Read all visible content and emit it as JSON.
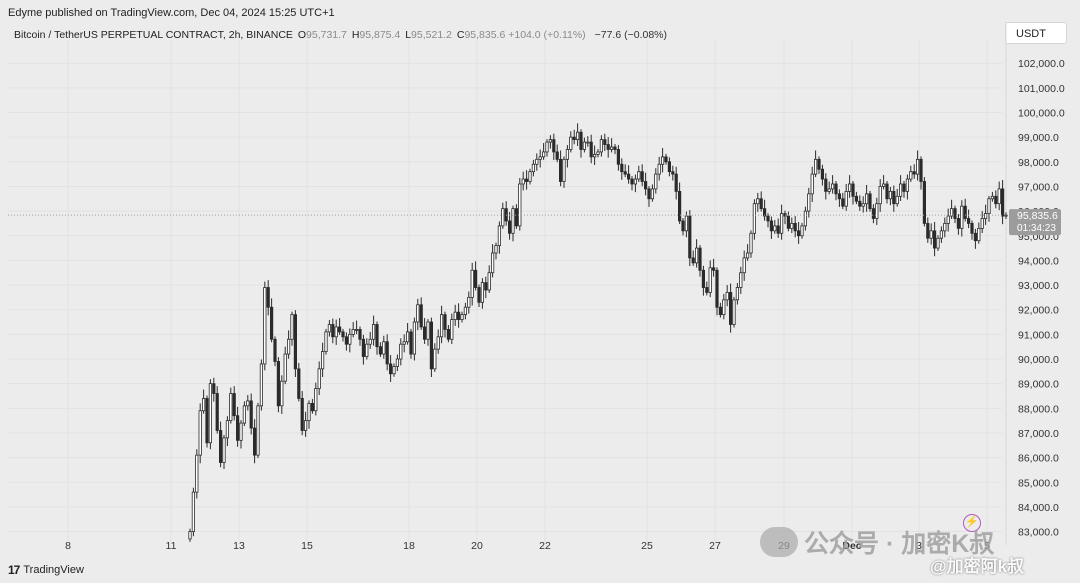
{
  "header": {
    "published": "Edyme published on TradingView.com, Dec 04, 2024 15:25 UTC+1",
    "symbol": "Bitcoin / TetherUS PERPETUAL CONTRACT, 2h, BINANCE",
    "o_label": "O",
    "o_value": "95,731.7",
    "h_label": "H",
    "h_value": "95,875.4",
    "l_label": "L",
    "l_value": "95,521.2",
    "c_label": "C",
    "c_value": "95,835.6",
    "change": "+104.0 (+0.11%)",
    "change2": "−77.6 (−0.08%)",
    "currency": "USDT"
  },
  "price_label": {
    "price": "95,835.6",
    "countdown": "01:34:23"
  },
  "footer": {
    "brand": "TradingView",
    "logo_icon": "tradingview-logo-icon"
  },
  "watermark": {
    "text": "公众号 · 加密K叔",
    "text2": "@加密阿k叔"
  },
  "colors": {
    "candle": "#2b2b2b",
    "wick": "#2b2b2b",
    "grid": "#e2e2e2",
    "background": "#ececec",
    "last_price_bg": "#9c9c9c"
  },
  "chart_data": {
    "type": "candlestick",
    "interval": "2h",
    "ylim": [
      82800,
      103000
    ],
    "y_ticks": [
      "102,000.0",
      "101,000.0",
      "100,000.0",
      "99,000.0",
      "98,000.0",
      "97,000.0",
      "96,000.0",
      "95,000.0",
      "94,000.0",
      "93,000.0",
      "92,000.0",
      "91,000.0",
      "90,000.0",
      "89,000.0",
      "88,000.0",
      "87,000.0",
      "86,000.0",
      "85,000.0",
      "84,000.0",
      "83,000.0"
    ],
    "y_tick_values": [
      102000,
      101000,
      100000,
      99000,
      98000,
      97000,
      96000,
      95000,
      94000,
      93000,
      92000,
      91000,
      90000,
      89000,
      88000,
      87000,
      86000,
      85000,
      84000,
      83000
    ],
    "x_ticks": [
      "8",
      "11",
      "13",
      "15",
      "18",
      "20",
      "22",
      "25",
      "27",
      "29",
      "Dec",
      "3",
      "5"
    ],
    "x_tick_bold": [
      false,
      false,
      false,
      false,
      false,
      false,
      false,
      false,
      false,
      false,
      true,
      false,
      false
    ],
    "last_price": 95835.6,
    "series": [
      {
        "name": "BTCUSDT.P",
        "closes": [
          83000,
          84600,
          86100,
          87900,
          88400,
          86600,
          89000,
          88600,
          87100,
          85800,
          86800,
          87500,
          88600,
          87700,
          86700,
          87400,
          88100,
          88300,
          87200,
          86100,
          88100,
          89800,
          92900,
          92100,
          90800,
          89900,
          88100,
          89100,
          90200,
          90800,
          91800,
          89600,
          88400,
          87100,
          87500,
          88200,
          87900,
          88800,
          89600,
          90300,
          91100,
          91400,
          90900,
          91300,
          91100,
          90900,
          90600,
          91000,
          91200,
          91200,
          90800,
          90100,
          90600,
          90800,
          91400,
          90500,
          90200,
          90700,
          89800,
          89400,
          89700,
          90000,
          90600,
          90700,
          91100,
          90200,
          91500,
          92200,
          91300,
          90800,
          91500,
          89600,
          90400,
          90900,
          91800,
          91200,
          90800,
          91600,
          91900,
          91600,
          91800,
          92100,
          92500,
          93600,
          92900,
          92300,
          93100,
          92800,
          93500,
          94300,
          94600,
          95400,
          96100,
          95600,
          95100,
          96100,
          95400,
          97100,
          97300,
          97200,
          97600,
          97900,
          98100,
          98200,
          98400,
          98800,
          98900,
          98400,
          98100,
          97200,
          98100,
          98500,
          99000,
          98900,
          99200,
          98500,
          98800,
          98800,
          98200,
          98300,
          98400,
          98900,
          98700,
          98500,
          98600,
          98500,
          97900,
          97600,
          97500,
          97300,
          97100,
          97300,
          97600,
          97200,
          96900,
          96500,
          96900,
          97500,
          97900,
          98200,
          98000,
          97600,
          97500,
          96800,
          95600,
          95200,
          95800,
          94100,
          93900,
          94500,
          93600,
          92900,
          92700,
          93700,
          93600,
          92100,
          91800,
          92400,
          92700,
          91400,
          92400,
          92900,
          93500,
          94100,
          94300,
          95100,
          96300,
          96500,
          96100,
          95800,
          95600,
          95200,
          95400,
          95100,
          95900,
          95800,
          95300,
          95500,
          95200,
          95000,
          95400,
          96000,
          96700,
          97500,
          98100,
          97700,
          97300,
          96800,
          96900,
          97100,
          96700,
          96500,
          96200,
          96800,
          97100,
          96600,
          96400,
          96200,
          96300,
          96700,
          96100,
          95700,
          96300,
          97000,
          97100,
          96500,
          96800,
          96300,
          96600,
          97100,
          96800,
          97300,
          97600,
          97500,
          98100,
          97200,
          95500,
          94900,
          95200,
          94500,
          94900,
          95200,
          95500,
          95800,
          96100,
          95700,
          95300,
          96200,
          95700,
          95500,
          95100,
          94800,
          95300,
          95700,
          95900,
          96500,
          96600,
          96300,
          96900,
          95800,
          95835.6
        ]
      }
    ]
  }
}
